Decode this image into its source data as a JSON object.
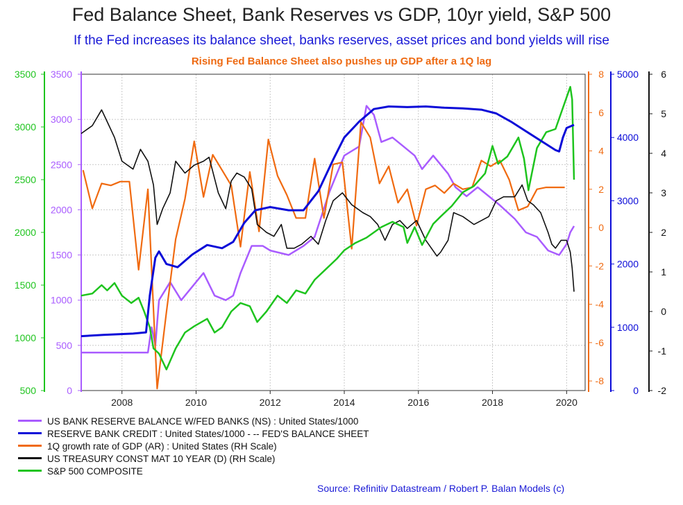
{
  "title": "Fed Balance Sheet, Bank Reserves vs GDP, 10yr yield, S&P 500",
  "subtitle": "If the Fed increases its balance sheet, banks reserves, asset prices and bond yields will rise",
  "subtitle2": "Rising Fed Balance Sheet also pushes up GDP after a 1Q lag",
  "source": "Source: Refinitiv Datastream /  Robert P. Balan Models (c)",
  "colors": {
    "reserves": "#a95cff",
    "fed": "#0b0bd8",
    "gdp": "#f06a10",
    "yield": "#111111",
    "sp500": "#1ec41e"
  },
  "chart_data": {
    "type": "line",
    "x_range": [
      2006.9,
      2020.5
    ],
    "x_ticks": [
      "2008",
      "2010",
      "2012",
      "2014",
      "2016",
      "2018",
      "2020"
    ],
    "axes": {
      "sp500": {
        "side": "left-outer",
        "range": [
          500,
          3500
        ],
        "ticks": [
          "500",
          "1000",
          "1500",
          "2000",
          "2500",
          "3000",
          "3500"
        ]
      },
      "reserves": {
        "side": "left-inner",
        "range": [
          0,
          3500
        ],
        "ticks": [
          "0",
          "500",
          "1000",
          "1500",
          "2000",
          "2500",
          "3000",
          "3500"
        ]
      },
      "gdp": {
        "side": "right-1",
        "range": [
          -8.5,
          8
        ],
        "ticks": [
          "-8",
          "-6",
          "-4",
          "-2",
          "0",
          "2",
          "4",
          "6",
          "8"
        ]
      },
      "fed": {
        "side": "right-2",
        "range": [
          0,
          5000
        ],
        "ticks": [
          "0",
          "1000",
          "2000",
          "3000",
          "4000",
          "5000"
        ]
      },
      "yield": {
        "side": "right-3",
        "range": [
          -2,
          6
        ],
        "ticks": [
          "-2",
          "-1",
          "0",
          "1",
          "2",
          "3",
          "4",
          "5",
          "6"
        ]
      }
    },
    "series": [
      {
        "key": "reserves",
        "name": "US BANK RESERVE BALANCE W/FED BANKS (NS) : United States/1000",
        "axis": "reserves",
        "points": [
          [
            2006.9,
            420
          ],
          [
            2008.7,
            420
          ],
          [
            2008.8,
            700
          ],
          [
            2008.9,
            500
          ],
          [
            2009.0,
            1000
          ],
          [
            2009.3,
            1200
          ],
          [
            2009.6,
            1000
          ],
          [
            2009.9,
            1150
          ],
          [
            2010.2,
            1300
          ],
          [
            2010.5,
            1050
          ],
          [
            2010.8,
            1000
          ],
          [
            2011.0,
            1050
          ],
          [
            2011.2,
            1300
          ],
          [
            2011.5,
            1600
          ],
          [
            2011.8,
            1600
          ],
          [
            2012.0,
            1550
          ],
          [
            2012.5,
            1500
          ],
          [
            2012.9,
            1600
          ],
          [
            2013.2,
            1700
          ],
          [
            2013.6,
            2200
          ],
          [
            2014.0,
            2600
          ],
          [
            2014.4,
            2700
          ],
          [
            2014.6,
            3150
          ],
          [
            2014.8,
            3050
          ],
          [
            2015.0,
            2750
          ],
          [
            2015.3,
            2800
          ],
          [
            2015.6,
            2700
          ],
          [
            2015.9,
            2600
          ],
          [
            2016.1,
            2450
          ],
          [
            2016.4,
            2600
          ],
          [
            2016.8,
            2400
          ],
          [
            2017.0,
            2250
          ],
          [
            2017.3,
            2150
          ],
          [
            2017.6,
            2250
          ],
          [
            2017.9,
            2150
          ],
          [
            2018.2,
            2050
          ],
          [
            2018.6,
            1900
          ],
          [
            2018.9,
            1750
          ],
          [
            2019.2,
            1700
          ],
          [
            2019.5,
            1550
          ],
          [
            2019.8,
            1500
          ],
          [
            2020.0,
            1620
          ],
          [
            2020.1,
            1750
          ],
          [
            2020.2,
            1820
          ]
        ]
      },
      {
        "key": "fed",
        "name": "RESERVE BANK CREDIT : United States/1000 - -- FED'S BALANCE SHEET",
        "axis": "fed",
        "points": [
          [
            2006.9,
            860
          ],
          [
            2007.5,
            880
          ],
          [
            2008.3,
            900
          ],
          [
            2008.65,
            920
          ],
          [
            2008.75,
            1500
          ],
          [
            2008.9,
            2100
          ],
          [
            2009.0,
            2200
          ],
          [
            2009.2,
            2000
          ],
          [
            2009.5,
            1950
          ],
          [
            2009.9,
            2150
          ],
          [
            2010.3,
            2300
          ],
          [
            2010.7,
            2250
          ],
          [
            2011.0,
            2350
          ],
          [
            2011.3,
            2650
          ],
          [
            2011.6,
            2850
          ],
          [
            2012.0,
            2900
          ],
          [
            2012.5,
            2850
          ],
          [
            2012.9,
            2850
          ],
          [
            2013.3,
            3150
          ],
          [
            2013.7,
            3650
          ],
          [
            2014.0,
            4000
          ],
          [
            2014.4,
            4250
          ],
          [
            2014.8,
            4450
          ],
          [
            2015.2,
            4490
          ],
          [
            2015.7,
            4480
          ],
          [
            2016.2,
            4490
          ],
          [
            2016.7,
            4470
          ],
          [
            2017.2,
            4460
          ],
          [
            2017.7,
            4440
          ],
          [
            2018.1,
            4380
          ],
          [
            2018.5,
            4250
          ],
          [
            2018.9,
            4100
          ],
          [
            2019.3,
            3950
          ],
          [
            2019.7,
            3800
          ],
          [
            2019.8,
            3780
          ],
          [
            2019.9,
            4000
          ],
          [
            2020.0,
            4150
          ],
          [
            2020.2,
            4200
          ]
        ]
      },
      {
        "key": "gdp",
        "name": "1Q growth rate of GDP (AR) : United States (RH Scale)",
        "axis": "gdp",
        "points": [
          [
            2006.95,
            3.0
          ],
          [
            2007.2,
            1.0
          ],
          [
            2007.45,
            2.3
          ],
          [
            2007.7,
            2.2
          ],
          [
            2007.95,
            2.4
          ],
          [
            2008.2,
            2.4
          ],
          [
            2008.45,
            -2.2
          ],
          [
            2008.7,
            2.0
          ],
          [
            2008.95,
            -8.4
          ],
          [
            2009.2,
            -4.4
          ],
          [
            2009.45,
            -0.6
          ],
          [
            2009.7,
            1.5
          ],
          [
            2009.95,
            4.5
          ],
          [
            2010.2,
            1.6
          ],
          [
            2010.45,
            3.8
          ],
          [
            2010.7,
            3.0
          ],
          [
            2010.95,
            2.2
          ],
          [
            2011.2,
            -1.0
          ],
          [
            2011.45,
            2.9
          ],
          [
            2011.7,
            -0.2
          ],
          [
            2011.95,
            4.6
          ],
          [
            2012.2,
            2.7
          ],
          [
            2012.45,
            1.7
          ],
          [
            2012.7,
            0.5
          ],
          [
            2012.95,
            0.5
          ],
          [
            2013.2,
            3.6
          ],
          [
            2013.45,
            0.5
          ],
          [
            2013.7,
            3.3
          ],
          [
            2013.95,
            3.4
          ],
          [
            2014.2,
            -1.1
          ],
          [
            2014.45,
            5.5
          ],
          [
            2014.7,
            4.7
          ],
          [
            2014.95,
            2.3
          ],
          [
            2015.2,
            3.2
          ],
          [
            2015.45,
            1.3
          ],
          [
            2015.7,
            2.0
          ],
          [
            2015.95,
            0.1
          ],
          [
            2016.2,
            2.0
          ],
          [
            2016.45,
            2.2
          ],
          [
            2016.7,
            1.8
          ],
          [
            2016.95,
            2.3
          ],
          [
            2017.2,
            2.0
          ],
          [
            2017.45,
            2.1
          ],
          [
            2017.7,
            3.5
          ],
          [
            2017.95,
            3.2
          ],
          [
            2018.2,
            3.5
          ],
          [
            2018.45,
            2.5
          ],
          [
            2018.7,
            0.9
          ],
          [
            2018.95,
            1.1
          ],
          [
            2019.2,
            2.0
          ],
          [
            2019.45,
            2.1
          ],
          [
            2019.7,
            2.1
          ],
          [
            2019.95,
            2.1
          ]
        ]
      },
      {
        "key": "yield",
        "name": "US TREASURY CONST MAT 10 YEAR (D) (RH Scale)",
        "axis": "yield",
        "points": [
          [
            2006.9,
            4.5
          ],
          [
            2007.2,
            4.7
          ],
          [
            2007.45,
            5.1
          ],
          [
            2007.6,
            4.8
          ],
          [
            2007.8,
            4.4
          ],
          [
            2008.0,
            3.8
          ],
          [
            2008.3,
            3.6
          ],
          [
            2008.5,
            4.1
          ],
          [
            2008.7,
            3.8
          ],
          [
            2008.85,
            3.2
          ],
          [
            2008.95,
            2.2
          ],
          [
            2009.1,
            2.6
          ],
          [
            2009.3,
            3.0
          ],
          [
            2009.45,
            3.8
          ],
          [
            2009.7,
            3.5
          ],
          [
            2009.95,
            3.7
          ],
          [
            2010.2,
            3.8
          ],
          [
            2010.35,
            3.9
          ],
          [
            2010.6,
            3.0
          ],
          [
            2010.8,
            2.6
          ],
          [
            2010.95,
            3.3
          ],
          [
            2011.1,
            3.5
          ],
          [
            2011.3,
            3.4
          ],
          [
            2011.5,
            3.1
          ],
          [
            2011.65,
            2.2
          ],
          [
            2011.9,
            2.0
          ],
          [
            2012.1,
            1.9
          ],
          [
            2012.3,
            2.2
          ],
          [
            2012.45,
            1.6
          ],
          [
            2012.65,
            1.6
          ],
          [
            2012.85,
            1.7
          ],
          [
            2013.1,
            1.9
          ],
          [
            2013.3,
            1.7
          ],
          [
            2013.5,
            2.3
          ],
          [
            2013.7,
            2.8
          ],
          [
            2013.95,
            3.0
          ],
          [
            2014.2,
            2.7
          ],
          [
            2014.5,
            2.5
          ],
          [
            2014.7,
            2.4
          ],
          [
            2014.9,
            2.2
          ],
          [
            2015.1,
            1.8
          ],
          [
            2015.3,
            2.2
          ],
          [
            2015.5,
            2.3
          ],
          [
            2015.7,
            2.1
          ],
          [
            2015.95,
            2.3
          ],
          [
            2016.2,
            1.8
          ],
          [
            2016.5,
            1.4
          ],
          [
            2016.6,
            1.5
          ],
          [
            2016.8,
            1.8
          ],
          [
            2016.95,
            2.5
          ],
          [
            2017.2,
            2.4
          ],
          [
            2017.5,
            2.2
          ],
          [
            2017.7,
            2.3
          ],
          [
            2017.9,
            2.4
          ],
          [
            2018.1,
            2.8
          ],
          [
            2018.3,
            2.9
          ],
          [
            2018.6,
            2.9
          ],
          [
            2018.8,
            3.2
          ],
          [
            2018.95,
            2.8
          ],
          [
            2019.1,
            2.7
          ],
          [
            2019.3,
            2.5
          ],
          [
            2019.5,
            2.0
          ],
          [
            2019.6,
            1.7
          ],
          [
            2019.7,
            1.6
          ],
          [
            2019.85,
            1.8
          ],
          [
            2020.0,
            1.8
          ],
          [
            2020.1,
            1.5
          ],
          [
            2020.15,
            1.1
          ],
          [
            2020.2,
            0.5
          ]
        ]
      },
      {
        "key": "sp500",
        "name": "S&P 500 COMPOSITE",
        "axis": "sp500",
        "points": [
          [
            2006.9,
            1400
          ],
          [
            2007.2,
            1420
          ],
          [
            2007.45,
            1500
          ],
          [
            2007.6,
            1450
          ],
          [
            2007.8,
            1520
          ],
          [
            2008.0,
            1400
          ],
          [
            2008.25,
            1330
          ],
          [
            2008.45,
            1380
          ],
          [
            2008.6,
            1250
          ],
          [
            2008.75,
            1100
          ],
          [
            2008.85,
            900
          ],
          [
            2009.0,
            850
          ],
          [
            2009.2,
            700
          ],
          [
            2009.45,
            900
          ],
          [
            2009.7,
            1050
          ],
          [
            2009.95,
            1110
          ],
          [
            2010.3,
            1180
          ],
          [
            2010.5,
            1050
          ],
          [
            2010.7,
            1100
          ],
          [
            2010.95,
            1250
          ],
          [
            2011.2,
            1330
          ],
          [
            2011.45,
            1300
          ],
          [
            2011.65,
            1150
          ],
          [
            2011.9,
            1250
          ],
          [
            2012.2,
            1400
          ],
          [
            2012.45,
            1330
          ],
          [
            2012.7,
            1450
          ],
          [
            2012.95,
            1420
          ],
          [
            2013.2,
            1550
          ],
          [
            2013.5,
            1650
          ],
          [
            2013.8,
            1750
          ],
          [
            2014.0,
            1830
          ],
          [
            2014.3,
            1900
          ],
          [
            2014.6,
            1950
          ],
          [
            2014.8,
            2000
          ],
          [
            2015.0,
            2050
          ],
          [
            2015.3,
            2100
          ],
          [
            2015.6,
            2050
          ],
          [
            2015.7,
            1900
          ],
          [
            2015.9,
            2050
          ],
          [
            2016.1,
            1880
          ],
          [
            2016.4,
            2080
          ],
          [
            2016.6,
            2150
          ],
          [
            2016.9,
            2250
          ],
          [
            2017.2,
            2380
          ],
          [
            2017.5,
            2440
          ],
          [
            2017.8,
            2560
          ],
          [
            2018.0,
            2820
          ],
          [
            2018.15,
            2650
          ],
          [
            2018.4,
            2720
          ],
          [
            2018.7,
            2900
          ],
          [
            2018.85,
            2700
          ],
          [
            2018.97,
            2400
          ],
          [
            2019.2,
            2800
          ],
          [
            2019.45,
            2950
          ],
          [
            2019.7,
            2980
          ],
          [
            2019.95,
            3230
          ],
          [
            2020.1,
            3380
          ],
          [
            2020.15,
            3260
          ],
          [
            2020.2,
            2500
          ]
        ]
      }
    ]
  },
  "legend": [
    {
      "key": "reserves",
      "label": "US BANK RESERVE BALANCE W/FED BANKS (NS) : United States/1000"
    },
    {
      "key": "fed",
      "label": "RESERVE BANK CREDIT : United States/1000 - -- FED'S BALANCE SHEET"
    },
    {
      "key": "gdp",
      "label": "1Q growth rate of GDP (AR) : United States (RH Scale)"
    },
    {
      "key": "yield",
      "label": "US TREASURY CONST MAT 10 YEAR (D) (RH Scale)"
    },
    {
      "key": "sp500",
      "label": "S&P 500 COMPOSITE"
    }
  ]
}
